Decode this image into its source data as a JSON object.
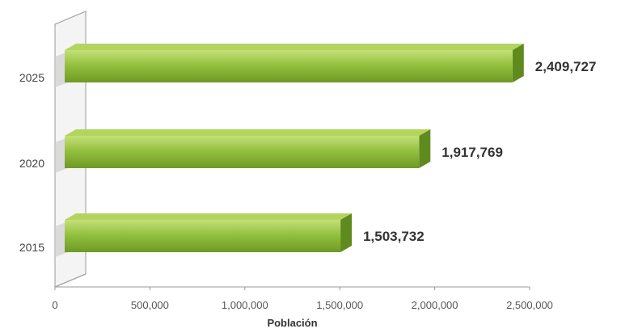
{
  "chart_data": {
    "type": "bar",
    "orientation": "horizontal",
    "style": "3d",
    "categories": [
      "2015",
      "2020",
      "2025"
    ],
    "values": [
      1503732,
      1917769,
      2409727
    ],
    "value_labels": [
      "1,503,732",
      "1,917,769",
      "2,409,727"
    ],
    "title": "",
    "xlabel": "Población",
    "ylabel": "",
    "xlim": [
      0,
      2500000
    ],
    "x_ticks": [
      {
        "value": 0,
        "label": "0"
      },
      {
        "value": 500000,
        "label": "500,000"
      },
      {
        "value": 1000000,
        "label": "1,000,000"
      },
      {
        "value": 1500000,
        "label": "1,500,000"
      },
      {
        "value": 2000000,
        "label": "2,000,000"
      },
      {
        "value": 2500000,
        "label": "2,500,000"
      }
    ],
    "grid": false,
    "legend": "none",
    "colors": {
      "bar_front": "#8dbb3a",
      "bar_top": "#b3d55e",
      "bar_side": "#5f8a1e",
      "wall": "#e6e6e6"
    }
  }
}
